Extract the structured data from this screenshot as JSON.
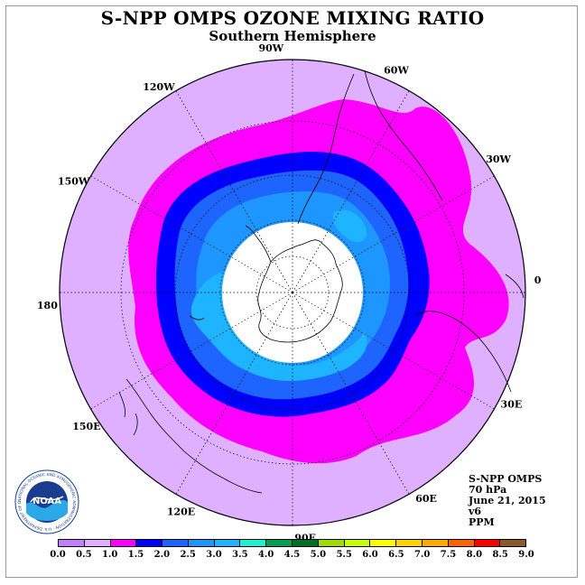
{
  "title": "S-NPP OMPS OZONE MIXING RATIO",
  "subtitle": "Southern Hemisphere",
  "longitude_labels": [
    "90W",
    "60W",
    "30W",
    "0",
    "30E",
    "60E",
    "90E",
    "120E",
    "150E",
    "180",
    "150W",
    "120W"
  ],
  "info": {
    "line1": "S-NPP OMPS",
    "line2": "70 hPa",
    "line3": "June 21, 2015",
    "line4": "v6",
    "line5": "PPM"
  },
  "logo": {
    "text": "NOAA",
    "ring_text": "NATIONAL OCEANIC AND ATMOSPHERIC ADMINISTRATION · U.S. DEPARTMENT OF COMMERCE"
  },
  "colorbar": {
    "ticks": [
      "0.0",
      "0.5",
      "1.0",
      "1.5",
      "2.0",
      "2.5",
      "3.0",
      "3.5",
      "4.0",
      "4.5",
      "5.0",
      "5.5",
      "6.0",
      "6.5",
      "7.0",
      "7.5",
      "8.0",
      "8.5",
      "9.0"
    ],
    "colors": [
      "#c080ff",
      "#dfb0ff",
      "#ff00ff",
      "#0000ff",
      "#1e64ff",
      "#1e96ff",
      "#1eb4ff",
      "#1ef0d2",
      "#00a050",
      "#007028",
      "#a0dc00",
      "#c8ff00",
      "#ffff00",
      "#ffd200",
      "#ffaa00",
      "#ff6400",
      "#ff0000",
      "#8b5a2b"
    ]
  },
  "colors": {
    "outer": "#dfb0ff",
    "magenta": "#ff00ff",
    "dark_blue": "#0000ff",
    "blue": "#1e64ff",
    "mid_blue": "#1e96ff",
    "light_blue": "#1eb4ff",
    "pole_fill": "#ffffff"
  }
}
